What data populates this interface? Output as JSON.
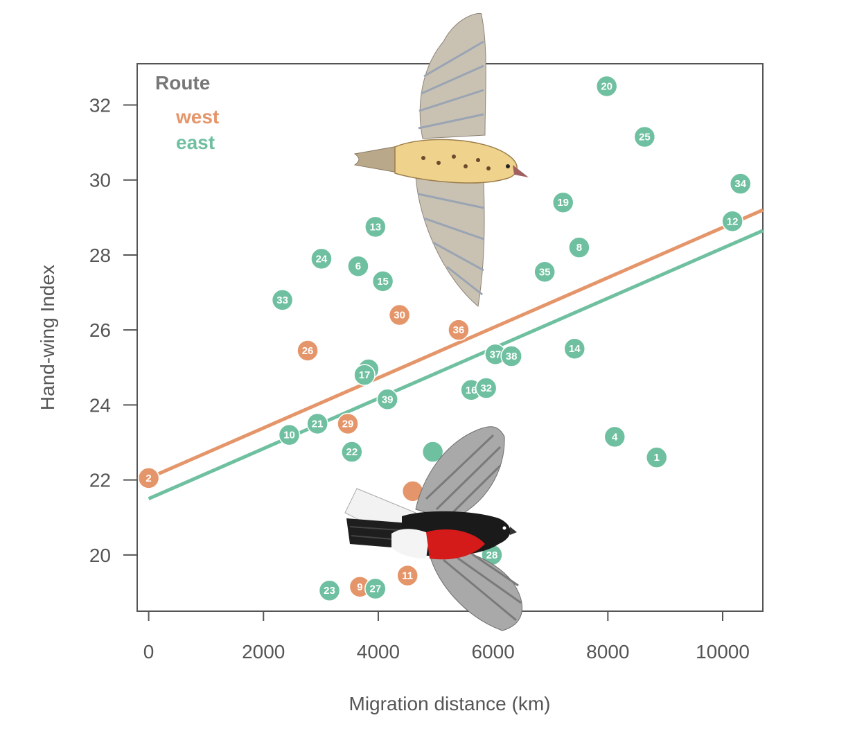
{
  "chart_data": {
    "type": "scatter",
    "title": "",
    "xlabel": "Migration distance (km)",
    "ylabel": "Hand-wing Index",
    "xlim": [
      -200,
      10700
    ],
    "ylim": [
      18.5,
      33.1
    ],
    "xticks": [
      0,
      2000,
      4000,
      6000,
      8000,
      10000
    ],
    "yticks": [
      20,
      22,
      24,
      26,
      28,
      30,
      32
    ],
    "xtick_labels": [
      "0",
      "2000",
      "4000",
      "6000",
      "8000",
      "10000"
    ],
    "ytick_labels": [
      "20",
      "22",
      "24",
      "26",
      "28",
      "30",
      "32"
    ],
    "legend": {
      "title": "Route",
      "position": "top-left",
      "entries": [
        {
          "name": "west",
          "color": "#E5956A"
        },
        {
          "name": "east",
          "color": "#6FC0A0"
        }
      ]
    },
    "series": [
      {
        "name": "west",
        "color": "#E5956A",
        "fit_line": {
          "x": [
            0,
            10700
          ],
          "y": [
            22.05,
            29.2
          ]
        },
        "points": [
          {
            "id": "2",
            "x": 0,
            "y": 22.05
          },
          {
            "id": "26",
            "x": 2770,
            "y": 25.45
          },
          {
            "id": "29",
            "x": 3470,
            "y": 23.5
          },
          {
            "id": "30",
            "x": 4370,
            "y": 26.4
          },
          {
            "id": "36",
            "x": 5400,
            "y": 26.0
          },
          {
            "id": "9",
            "x": 3680,
            "y": 19.15
          },
          {
            "id": "11",
            "x": 4510,
            "y": 19.45
          },
          {
            "id": "",
            "x": 4600,
            "y": 21.7
          }
        ]
      },
      {
        "name": "east",
        "color": "#6FC0A0",
        "fit_line": {
          "x": [
            0,
            10700
          ],
          "y": [
            21.5,
            28.65
          ]
        },
        "points": [
          {
            "id": "10",
            "x": 2450,
            "y": 23.2
          },
          {
            "id": "21",
            "x": 2940,
            "y": 23.5
          },
          {
            "id": "22",
            "x": 3540,
            "y": 22.75
          },
          {
            "id": "33",
            "x": 2330,
            "y": 26.8
          },
          {
            "id": "24",
            "x": 3010,
            "y": 27.9
          },
          {
            "id": "6",
            "x": 3650,
            "y": 27.7
          },
          {
            "id": "15",
            "x": 4080,
            "y": 27.3
          },
          {
            "id": "13",
            "x": 3950,
            "y": 28.75
          },
          {
            "id": "3",
            "x": 3830,
            "y": 24.95
          },
          {
            "id": "17",
            "x": 3760,
            "y": 24.8
          },
          {
            "id": "39",
            "x": 4160,
            "y": 24.15
          },
          {
            "id": "23",
            "x": 3150,
            "y": 19.05
          },
          {
            "id": "27",
            "x": 3950,
            "y": 19.1
          },
          {
            "id": "",
            "x": 4950,
            "y": 22.75
          },
          {
            "id": "28",
            "x": 5980,
            "y": 20.0
          },
          {
            "id": "16",
            "x": 5620,
            "y": 24.4
          },
          {
            "id": "32",
            "x": 5880,
            "y": 24.45
          },
          {
            "id": "37",
            "x": 6040,
            "y": 25.35
          },
          {
            "id": "38",
            "x": 6320,
            "y": 25.3
          },
          {
            "id": "35",
            "x": 6900,
            "y": 27.55
          },
          {
            "id": "19",
            "x": 7220,
            "y": 29.4
          },
          {
            "id": "8",
            "x": 7500,
            "y": 28.2
          },
          {
            "id": "14",
            "x": 7420,
            "y": 25.5
          },
          {
            "id": "20",
            "x": 7980,
            "y": 32.5
          },
          {
            "id": "25",
            "x": 8640,
            "y": 31.15
          },
          {
            "id": "4",
            "x": 8120,
            "y": 23.15
          },
          {
            "id": "1",
            "x": 8850,
            "y": 22.6
          },
          {
            "id": "34",
            "x": 10310,
            "y": 29.9
          },
          {
            "id": "12",
            "x": 10170,
            "y": 28.9
          }
        ]
      }
    ]
  }
}
